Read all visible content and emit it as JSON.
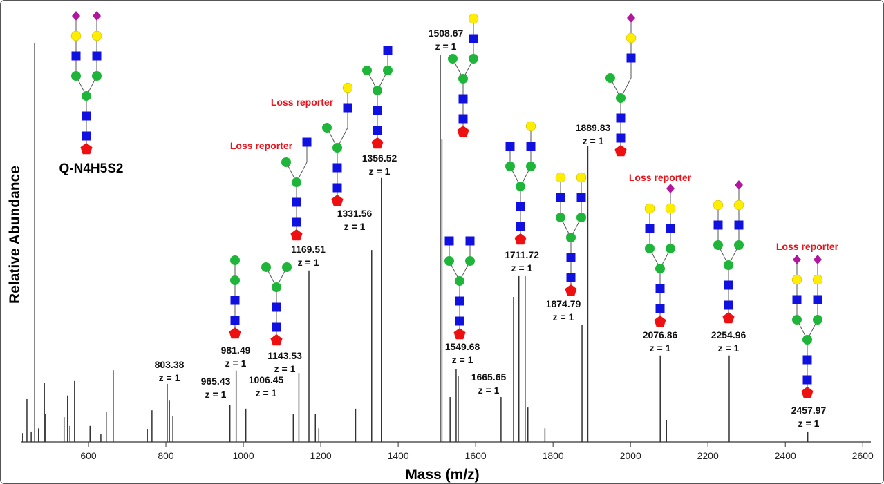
{
  "chart_data": {
    "type": "spectrum",
    "x_label": "Mass (m/z)",
    "y_label": "Relative Abundance",
    "color": "#333333",
    "x": [
      430,
      441,
      452,
      461,
      471,
      486,
      489,
      537,
      546,
      552,
      564,
      604,
      632,
      646,
      664,
      752,
      764,
      803.38,
      809,
      818,
      965.43,
      981.49,
      1006.45,
      1129,
      1143.53,
      1169.51,
      1186,
      1195,
      1290,
      1331.56,
      1356.52,
      1508.67,
      1513,
      1534,
      1549.68,
      1555,
      1665.65,
      1698,
      1711.72,
      1728,
      1735,
      1779,
      1874.79,
      1889.83,
      2076.86,
      2093,
      2254.96,
      2457.97
    ],
    "values": [
      2.2,
      10.7,
      2.6,
      99.5,
      3.4,
      14.7,
      6.9,
      6.2,
      11.6,
      4,
      15.2,
      4,
      2,
      7.4,
      17.9,
      3.1,
      7.9,
      14.5,
      10.3,
      6.4,
      9.3,
      17.8,
      8.3,
      6.9,
      17.2,
      42.8,
      6.9,
      3.4,
      8.3,
      47.9,
      65.9,
      96.6,
      75.5,
      11.2,
      18.1,
      16.4,
      11.2,
      36.2,
      41.4,
      41.4,
      8.6,
      3.4,
      29.3,
      73.8,
      21.6,
      5.5,
      21.6,
      2.6
    ],
    "charges": [
      null,
      null,
      null,
      null,
      null,
      null,
      null,
      null,
      null,
      null,
      null,
      null,
      null,
      null,
      null,
      null,
      null,
      "z = 1",
      null,
      null,
      "z = 1",
      "z = 1",
      "z = 1",
      null,
      "z = 1",
      "z = 1",
      null,
      null,
      null,
      "z = 1",
      "z = 1",
      "z = 1",
      null,
      null,
      "z = 1",
      null,
      "z = 1",
      null,
      "z = 1",
      null,
      null,
      null,
      "z = 1",
      "z = 1",
      "z = 1",
      null,
      "z = 1",
      "z = 1"
    ],
    "xlim": [
      425,
      2621
    ],
    "ylim": [
      0,
      100
    ],
    "xticks": [
      600,
      800,
      1000,
      1200,
      1400,
      1600,
      1800,
      2000,
      2200,
      2400,
      2600
    ],
    "annotations": [
      "Q-N4H5S2",
      "Loss reporter",
      "Loss reporter",
      "Loss reporter",
      "Loss reporter"
    ]
  }
}
